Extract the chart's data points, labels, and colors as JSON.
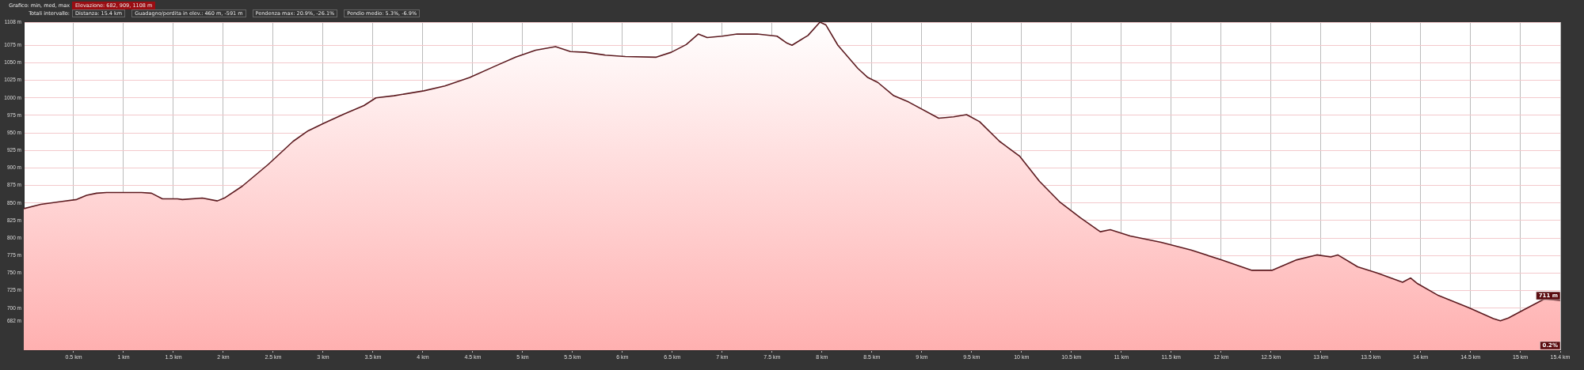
{
  "chart_data": {
    "type": "area",
    "annotations": [
      "Grafico: min, med, max",
      "Elevazione: 682, 909, 1108 m",
      "Totali intervallo:",
      "Distanza: 15.4 km",
      "Guadagno/perdita in elev.: 460 m, -591 m",
      "Pendenza max: 20.9%, -26.1%",
      "Pendio medio: 5.3%, -6.9%",
      {
        "text": "711 m",
        "x": 15.4,
        "y": 711
      },
      {
        "text": "0.2%",
        "x": 15.4,
        "y": 640
      }
    ],
    "series": [
      {
        "color": "#5c1a1f",
        "x": [
          0,
          0.17,
          0.37,
          0.53,
          0.63,
          0.73,
          0.83,
          0.98,
          1.18,
          1.28,
          1.39,
          1.54,
          1.59,
          1.79,
          1.94,
          2.01,
          2.19,
          2.45,
          2.7,
          2.85,
          3.01,
          3.21,
          3.41,
          3.53,
          3.71,
          4.01,
          4.22,
          4.47,
          4.72,
          4.93,
          5.13,
          5.33,
          5.48,
          5.63,
          5.83,
          6.03,
          6.34,
          6.49,
          6.64,
          6.76,
          6.85,
          7.0,
          7.15,
          7.35,
          7.55,
          7.65,
          7.7,
          7.78,
          7.86,
          7.98,
          8.04,
          8.16,
          8.36,
          8.46,
          8.56,
          8.72,
          8.87,
          9.17,
          9.32,
          9.45,
          9.58,
          9.78,
          9.98,
          10.18,
          10.38,
          10.59,
          10.79,
          10.89,
          11.09,
          11.4,
          11.7,
          12.0,
          12.31,
          12.51,
          12.76,
          12.96,
          13.1,
          13.17,
          13.37,
          13.57,
          13.82,
          13.9,
          13.97,
          14.18,
          14.48,
          14.73,
          14.8,
          14.88,
          15.04,
          15.24,
          15.4
        ],
        "values": [
          842,
          848,
          852,
          855,
          861,
          864,
          865,
          865,
          865,
          864,
          856,
          856,
          855,
          857,
          853,
          857,
          874,
          905,
          938,
          953,
          964,
          977,
          989,
          1000,
          1003,
          1010,
          1017,
          1029,
          1045,
          1058,
          1068,
          1073,
          1066,
          1065,
          1061,
          1059,
          1058,
          1065,
          1076,
          1091,
          1086,
          1088,
          1091,
          1091,
          1088,
          1078,
          1075,
          1082,
          1089,
          1108,
          1104,
          1075,
          1042,
          1029,
          1022,
          1003,
          994,
          971,
          973,
          976,
          966,
          938,
          917,
          881,
          852,
          829,
          809,
          812,
          803,
          794,
          783,
          769,
          754,
          754,
          769,
          776,
          773,
          776,
          759,
          750,
          737,
          743,
          735,
          718,
          701,
          685,
          682,
          686,
          698,
          713,
          711
        ]
      }
    ],
    "xlim": [
      0,
      15.4
    ],
    "xticks": [
      {
        "value": 0.5,
        "label": "0.5 km"
      },
      {
        "value": 1,
        "label": "1 km"
      },
      {
        "value": 1.5,
        "label": "1.5 km"
      },
      {
        "value": 2,
        "label": "2 km"
      },
      {
        "value": 2.5,
        "label": "2.5 km"
      },
      {
        "value": 3,
        "label": "3 km"
      },
      {
        "value": 3.5,
        "label": "3.5 km"
      },
      {
        "value": 4,
        "label": "4 km"
      },
      {
        "value": 4.5,
        "label": "4.5 km"
      },
      {
        "value": 5,
        "label": "5 km"
      },
      {
        "value": 5.5,
        "label": "5.5 km"
      },
      {
        "value": 6,
        "label": "6 km"
      },
      {
        "value": 6.5,
        "label": "6.5 km"
      },
      {
        "value": 7,
        "label": "7 km"
      },
      {
        "value": 7.5,
        "label": "7.5 km"
      },
      {
        "value": 8,
        "label": "8 km"
      },
      {
        "value": 8.5,
        "label": "8.5 km"
      },
      {
        "value": 9,
        "label": "9 km"
      },
      {
        "value": 9.5,
        "label": "9.5 km"
      },
      {
        "value": 10,
        "label": "10 km"
      },
      {
        "value": 10.5,
        "label": "10.5 km"
      },
      {
        "value": 11,
        "label": "11 km"
      },
      {
        "value": 11.5,
        "label": "11.5 km"
      },
      {
        "value": 12,
        "label": "12 km"
      },
      {
        "value": 12.5,
        "label": "12.5 km"
      },
      {
        "value": 13,
        "label": "13 km"
      },
      {
        "value": 13.5,
        "label": "13.5 km"
      },
      {
        "value": 14,
        "label": "14 km"
      },
      {
        "value": 14.5,
        "label": "14.5 km"
      },
      {
        "value": 15,
        "label": "15 km"
      },
      {
        "value": 15.4,
        "label": "15.4 km"
      }
    ],
    "ylim": [
      640,
      1108
    ],
    "yticks": [
      {
        "value": 682,
        "label": "682 m"
      },
      {
        "value": 700,
        "label": "700 m"
      },
      {
        "value": 725,
        "label": "725 m"
      },
      {
        "value": 750,
        "label": "750 m"
      },
      {
        "value": 775,
        "label": "775 m"
      },
      {
        "value": 800,
        "label": "800 m"
      },
      {
        "value": 825,
        "label": "825 m"
      },
      {
        "value": 850,
        "label": "850 m"
      },
      {
        "value": 875,
        "label": "875 m"
      },
      {
        "value": 900,
        "label": "900 m"
      },
      {
        "value": 925,
        "label": "925 m"
      },
      {
        "value": 950,
        "label": "950 m"
      },
      {
        "value": 975,
        "label": "975 m"
      },
      {
        "value": 1000,
        "label": "1000 m"
      },
      {
        "value": 1025,
        "label": "1025 m"
      },
      {
        "value": 1050,
        "label": "1050 m"
      },
      {
        "value": 1075,
        "label": "1075 m"
      },
      {
        "value": 1108,
        "label": "1108 m"
      }
    ],
    "grid": true,
    "legend": false,
    "marker": "none",
    "line_style": "solid"
  }
}
